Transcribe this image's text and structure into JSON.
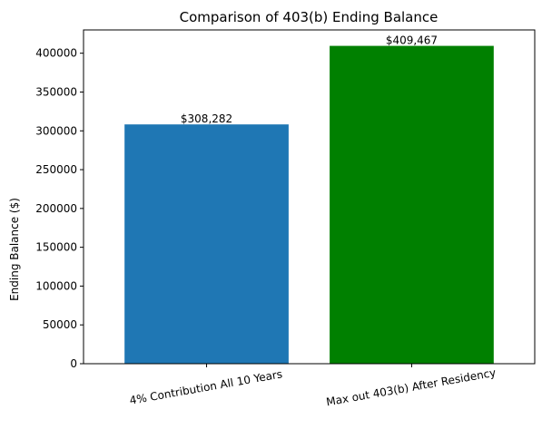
{
  "chart_data": {
    "type": "bar",
    "title": "Comparison of 403(b) Ending Balance",
    "xlabel": "",
    "ylabel": "Ending Balance ($)",
    "categories": [
      "4% Contribution All 10 Years",
      "Max out 403(b) After Residency"
    ],
    "values": [
      308282,
      409467
    ],
    "value_labels": [
      "$308,282",
      "$409,467"
    ],
    "bar_colors": [
      "#1f77b4",
      "#008000"
    ],
    "ylim": [
      0,
      430000
    ],
    "yticks": [
      0,
      50000,
      100000,
      150000,
      200000,
      250000,
      300000,
      350000,
      400000
    ],
    "ytick_labels": [
      "0",
      "50000",
      "100000",
      "150000",
      "200000",
      "250000",
      "300000",
      "350000",
      "400000"
    ],
    "grid": false,
    "legend": "none"
  }
}
